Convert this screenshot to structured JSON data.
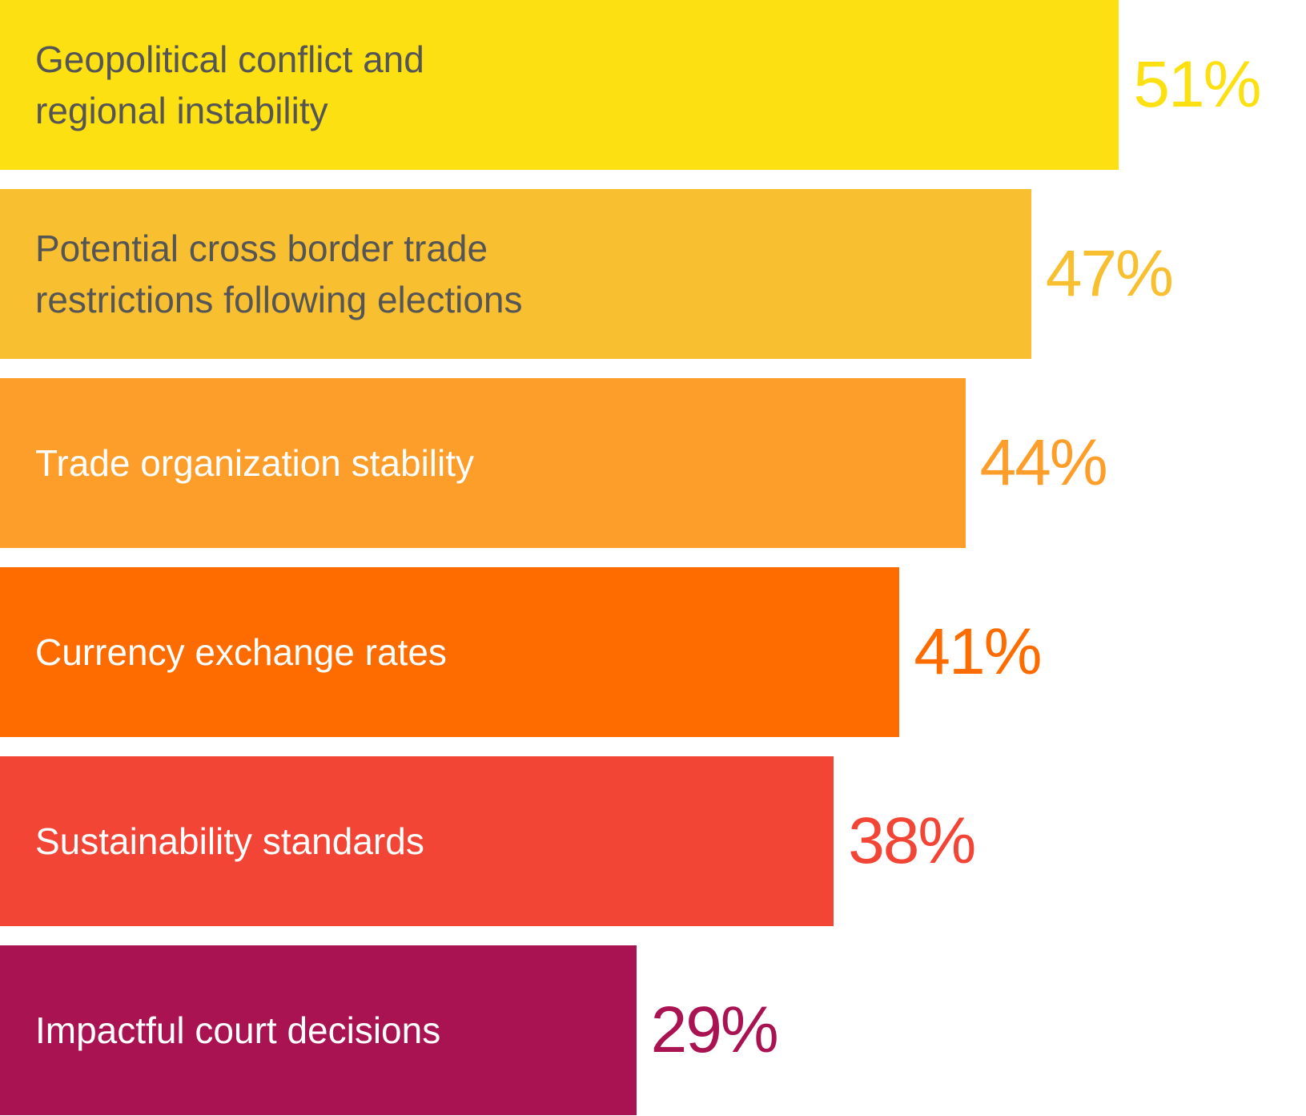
{
  "chart_data": {
    "type": "bar",
    "orientation": "horizontal",
    "categories": [
      "Geopolitical conflict and\nregional instability",
      "Potential cross border trade\nrestrictions following elections",
      "Trade organization stability",
      "Currency exchange rates",
      "Sustainability standards",
      "Impactful court decisions"
    ],
    "values": [
      51,
      47,
      44,
      41,
      38,
      29
    ],
    "value_labels": [
      "51%",
      "47%",
      "44%",
      "41%",
      "38%",
      "29%"
    ],
    "colors": [
      "#fde012",
      "#f8c030",
      "#fe9e2a",
      "#fe6c00",
      "#f24536",
      "#aa1352"
    ],
    "label_colors": [
      "#555555",
      "#555555",
      "#ffffff",
      "#ffffff",
      "#ffffff",
      "#ffffff"
    ]
  }
}
